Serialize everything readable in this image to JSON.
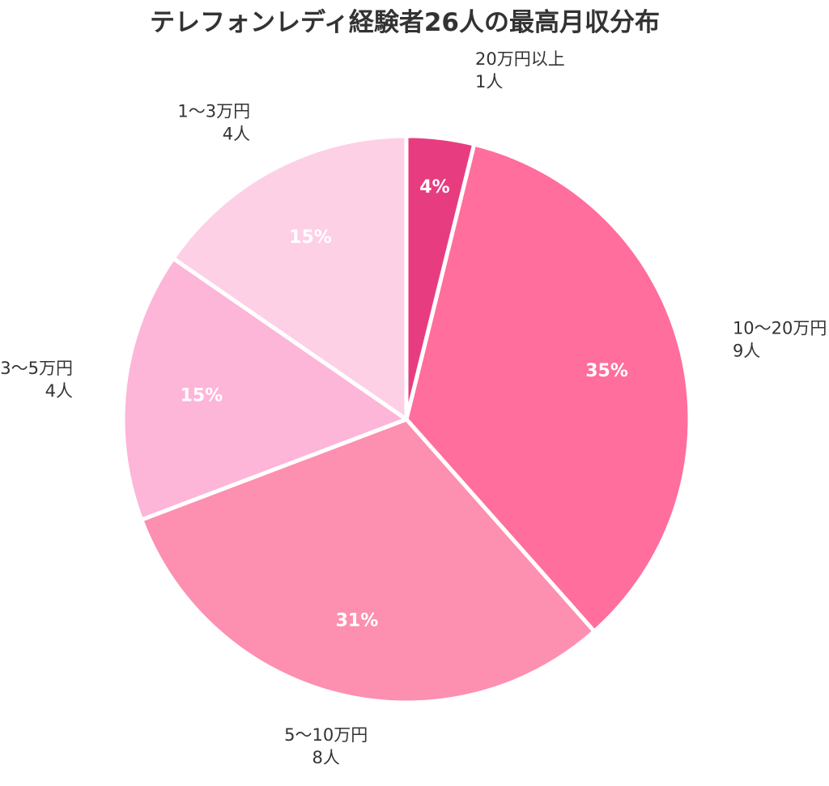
{
  "chart_data": {
    "type": "pie",
    "title": "テレフォンレディ経験者26人の最高月収分布",
    "start_angle_deg": 0,
    "direction": "clockwise",
    "slices": [
      {
        "label": "20万円以上",
        "count_label": "1人",
        "value": 1,
        "percent_label": "4%",
        "color": "#E73D80"
      },
      {
        "label": "10〜20万円",
        "count_label": "9人",
        "value": 9,
        "percent_label": "35%",
        "color": "#FF6E9C"
      },
      {
        "label": "5〜10万円",
        "count_label": "8人",
        "value": 8,
        "percent_label": "31%",
        "color": "#FD8FB0"
      },
      {
        "label": "3〜5万円",
        "count_label": "4人",
        "value": 4,
        "percent_label": "15%",
        "color": "#FDB5D8"
      },
      {
        "label": "1〜3万円",
        "count_label": "4人",
        "value": 4,
        "percent_label": "15%",
        "color": "#FDD0E6"
      }
    ]
  }
}
